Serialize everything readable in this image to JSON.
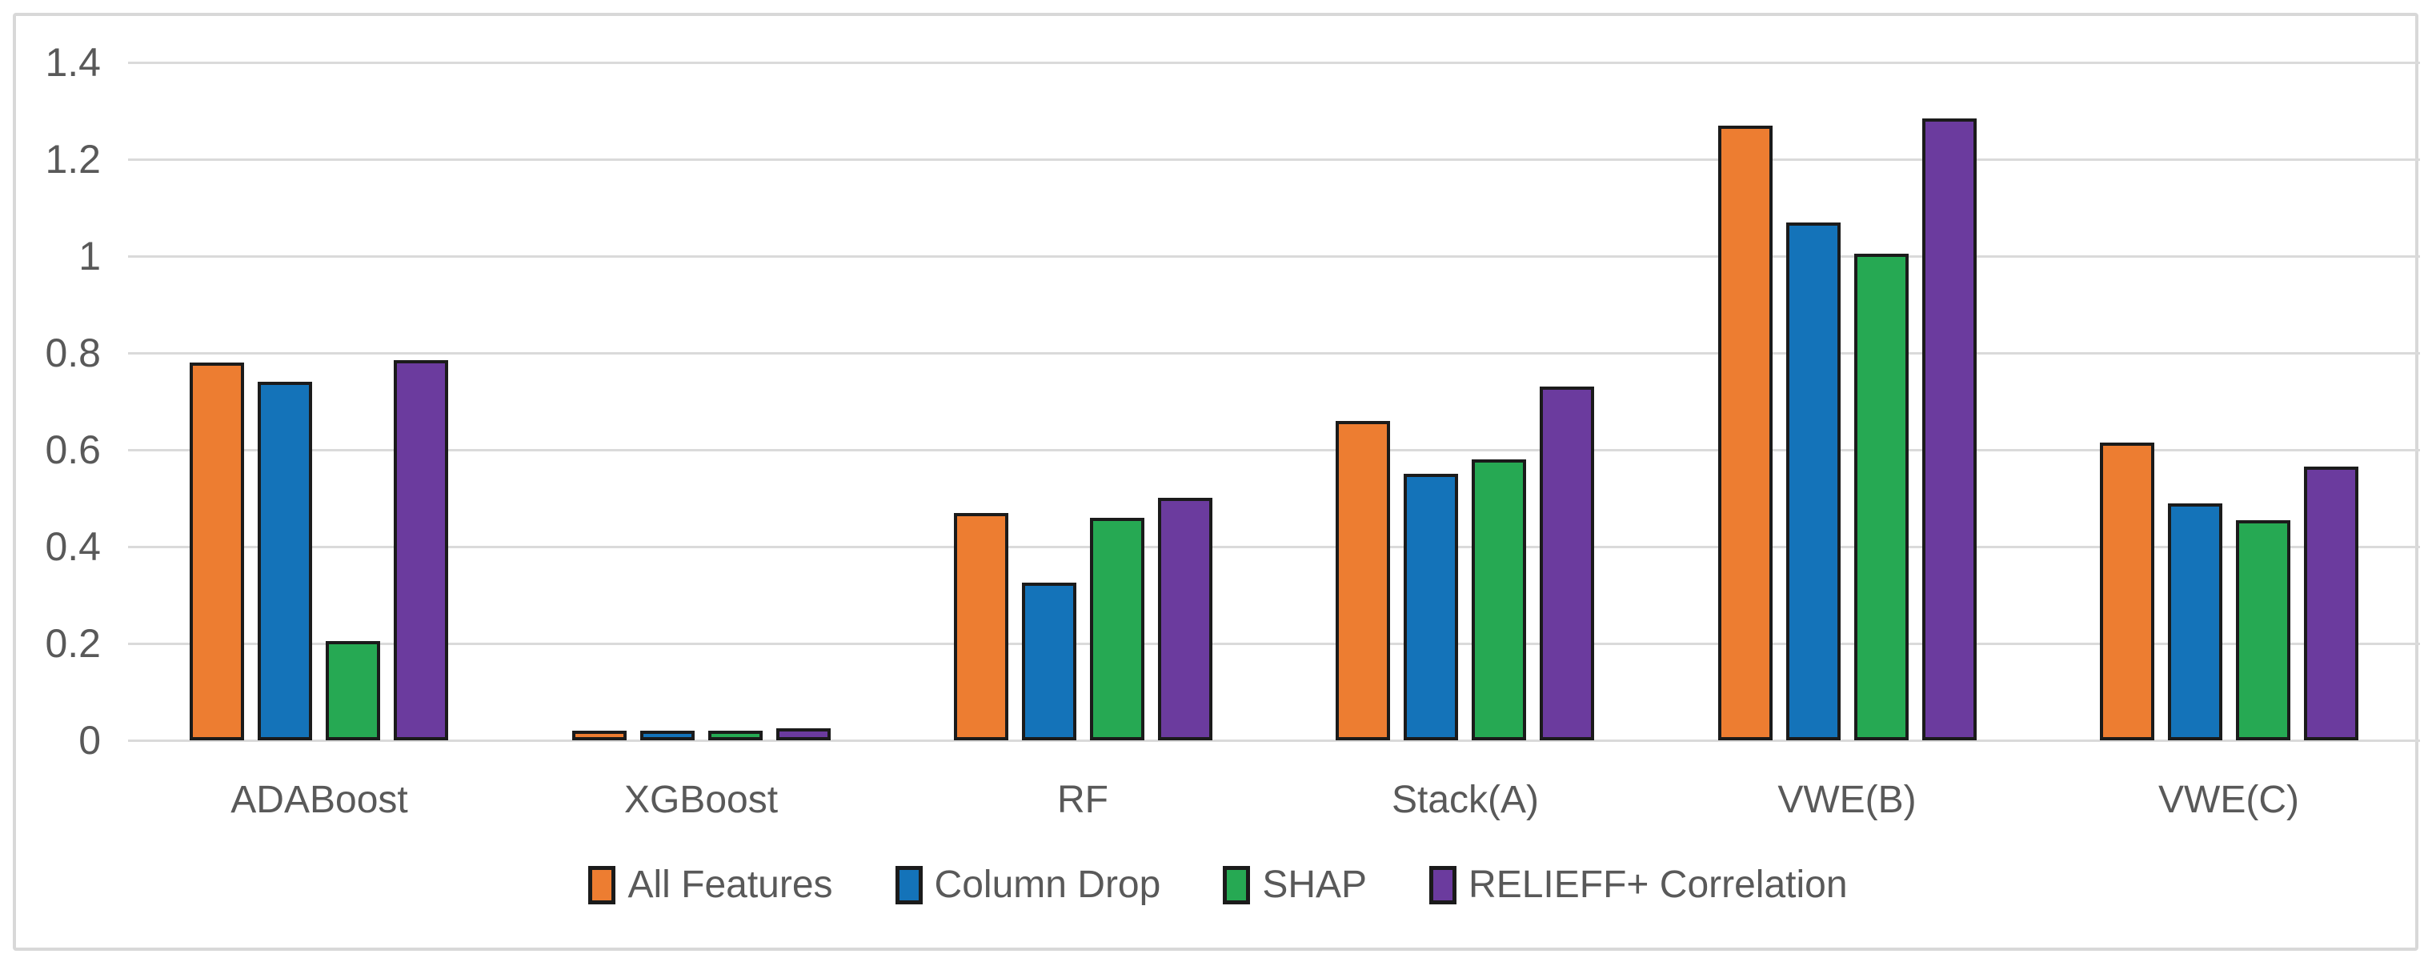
{
  "figure": {
    "background": "#FFFFFF",
    "border_color": "#D8D8D8"
  },
  "chart_data": {
    "type": "bar",
    "title": "",
    "xlabel": "",
    "ylabel": "",
    "categories": [
      "ADABoost",
      "XGBoost",
      "RF",
      "Stack(A)",
      "VWE(B)",
      "VWE(C)"
    ],
    "series": [
      {
        "name": "All Features",
        "color": "#ED7D31",
        "values": [
          0.78,
          0.02,
          0.47,
          0.66,
          1.27,
          0.615
        ]
      },
      {
        "name": "Column Drop",
        "color": "#1473B9",
        "values": [
          0.74,
          0.02,
          0.325,
          0.55,
          1.07,
          0.49
        ]
      },
      {
        "name": "SHAP",
        "color": "#26A953",
        "values": [
          0.205,
          0.02,
          0.46,
          0.58,
          1.005,
          0.455
        ]
      },
      {
        "name": "RELIEFF+ Correlation",
        "color": "#6B3B9E",
        "values": [
          0.785,
          0.025,
          0.5,
          0.73,
          1.285,
          0.565
        ]
      }
    ],
    "ylim": [
      0,
      1.4
    ],
    "yticks": {
      "values": [
        0,
        0.2,
        0.4,
        0.6,
        0.8,
        1,
        1.2,
        1.4
      ],
      "labels": [
        "0",
        "0.2",
        "0.4",
        "0.6",
        "0.8",
        "1",
        "1.2",
        "1.4"
      ]
    },
    "grid": true,
    "gridline_color": "#DADADA",
    "bar_border_color": "#1B1B1B",
    "text_color": "#595959",
    "legend_position": "bottom"
  }
}
